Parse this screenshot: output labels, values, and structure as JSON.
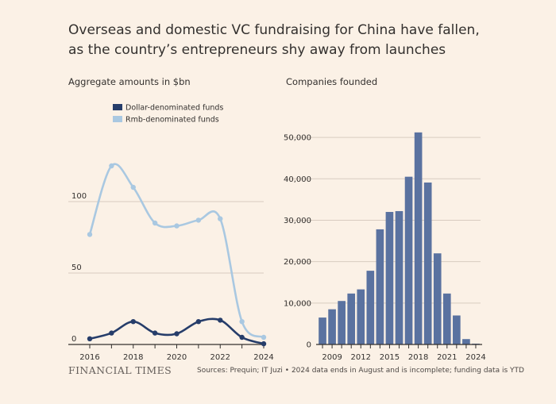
{
  "headline": "Overseas and domestic VC fundraising for China have fallen, as the country’s entrepreneurs shy away from launches",
  "brand": "FINANCIAL TIMES",
  "source": "Sources: Prequin; IT Juzi • 2024 data ends in August and is incomplete; funding data is YTD",
  "colors": {
    "background": "#fbf1e6",
    "dollar": "#263d6a",
    "rmb": "#a9c8e1",
    "bar": "#5a72a0",
    "grid": "#d8ccc0",
    "axis": "#33302e"
  },
  "chart_data": [
    {
      "type": "line",
      "title": "Aggregate amounts in $bn",
      "x": [
        2016,
        2017,
        2018,
        2019,
        2020,
        2021,
        2022,
        2023,
        2024
      ],
      "series": [
        {
          "name": "Dollar-denominated funds",
          "values": [
            4,
            8,
            16,
            8,
            7.5,
            16,
            17,
            5,
            0.5
          ]
        },
        {
          "name": "Rmb-denominated funds",
          "values": [
            77,
            125,
            110,
            85,
            83,
            87,
            88,
            16,
            5
          ]
        }
      ],
      "xticks": [
        "2016",
        "2018",
        "2020",
        "2022",
        "2024"
      ],
      "yticks": [
        "0",
        "50",
        "100"
      ],
      "xlim": [
        2016,
        2024
      ],
      "ylim": [
        0,
        130
      ],
      "grid": true,
      "legend": "top-left"
    },
    {
      "type": "bar",
      "title": "Companies founded",
      "categories": [
        "2008",
        "2009",
        "2010",
        "2011",
        "2012",
        "2013",
        "2014",
        "2015",
        "2016",
        "2017",
        "2018",
        "2019",
        "2020",
        "2021",
        "2022",
        "2023",
        "2024"
      ],
      "values": [
        6500,
        8500,
        10500,
        12300,
        13300,
        17800,
        27800,
        32000,
        32200,
        40500,
        51200,
        39100,
        22000,
        12300,
        7000,
        1300,
        200
      ],
      "xticks": [
        "2009",
        "2012",
        "2015",
        "2018",
        "2021",
        "2024"
      ],
      "yticks": [
        "0",
        "10,000",
        "20,000",
        "30,000",
        "40,000",
        "50,000"
      ],
      "ylim": [
        0,
        55000
      ],
      "grid": true
    }
  ]
}
